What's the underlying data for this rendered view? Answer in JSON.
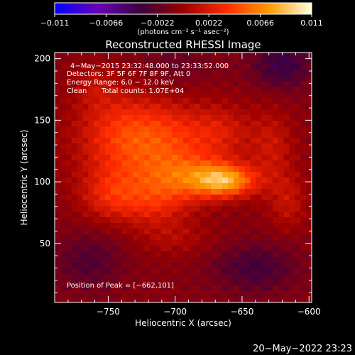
{
  "chart_data": {
    "type": "heatmap",
    "title": "Reconstructed RHESSI Image",
    "xlabel": "Heliocentric X (arcsec)",
    "ylabel": "Heliocentric Y (arcsec)",
    "xlim": [
      -790,
      -598
    ],
    "ylim": [
      2,
      205
    ],
    "x_ticks": [
      -750,
      -700,
      -650,
      -600
    ],
    "x_tick_labels": [
      "−750",
      "−700",
      "−650",
      "−600"
    ],
    "y_ticks": [
      50,
      100,
      150,
      200
    ],
    "y_tick_labels": [
      "50",
      "100",
      "150",
      "200"
    ],
    "colorbar": {
      "range": [
        -0.011,
        0.011
      ],
      "ticks": [
        -0.011,
        -0.0066,
        -0.0022,
        0.0022,
        0.0066,
        0.011
      ],
      "tick_labels": [
        "−0.011",
        "−0.0066",
        "−0.0022",
        "0.0022",
        "0.0066",
        "0.011"
      ],
      "units_label": "(photons cm⁻² s⁻¹ asec⁻²)",
      "colormap": [
        "#0000ff",
        "#6a00b8",
        "#3a0040",
        "#9a0000",
        "#ff2a00",
        "#ff9900",
        "#ffffe0"
      ]
    },
    "peak": {
      "x": -662,
      "y": 101,
      "value": 0.011
    },
    "sources": [
      {
        "x": -662,
        "y": 101,
        "amplitude": 0.0075,
        "sx": 16,
        "sy": 9
      },
      {
        "x": -690,
        "y": 104,
        "amplitude": 0.0045,
        "sx": 22,
        "sy": 14
      },
      {
        "x": -730,
        "y": 118,
        "amplitude": 0.0036,
        "sx": 28,
        "sy": 22
      },
      {
        "x": -740,
        "y": 148,
        "amplitude": 0.003,
        "sx": 24,
        "sy": 20
      },
      {
        "x": -700,
        "y": 140,
        "amplitude": 0.0026,
        "sx": 22,
        "sy": 18
      },
      {
        "x": -748,
        "y": 88,
        "amplitude": 0.003,
        "sx": 16,
        "sy": 14
      },
      {
        "x": -715,
        "y": 82,
        "amplitude": 0.0028,
        "sx": 18,
        "sy": 14
      },
      {
        "x": -665,
        "y": 140,
        "amplitude": 0.0025,
        "sx": 16,
        "sy": 16
      },
      {
        "x": -628,
        "y": 128,
        "amplitude": 0.0024,
        "sx": 12,
        "sy": 22
      },
      {
        "x": -616,
        "y": 84,
        "amplitude": 0.0022,
        "sx": 10,
        "sy": 16
      },
      {
        "x": -700,
        "y": 54,
        "amplitude": 0.0014,
        "sx": 20,
        "sy": 10
      },
      {
        "x": -760,
        "y": 178,
        "amplitude": 0.0016,
        "sx": 12,
        "sy": 12
      },
      {
        "x": -640,
        "y": 30,
        "amplitude": -0.0025,
        "sx": 22,
        "sy": 14
      },
      {
        "x": -620,
        "y": 195,
        "amplitude": -0.003,
        "sx": 16,
        "sy": 14
      },
      {
        "x": -765,
        "y": 35,
        "amplitude": -0.002,
        "sx": 18,
        "sy": 16
      },
      {
        "x": -700,
        "y": 195,
        "amplitude": -0.0012,
        "sx": 20,
        "sy": 10
      }
    ],
    "background_level": -0.0008
  },
  "annotations": {
    "time_range": "4−May−2015 23:32:48.000 to 23:33:52.000",
    "detectors": "Detectors: 3F 5F 6F 7F 8F 9F, Att 0",
    "energy_range": "Energy Range: 6.0 − 12.0 keV",
    "clean_label": "Clean",
    "total_counts": "Total counts: 1.07E+04",
    "peak_position": "Position of Peak = [−662,101]"
  },
  "footer": {
    "timestamp": "20−May−2022 23:23"
  }
}
